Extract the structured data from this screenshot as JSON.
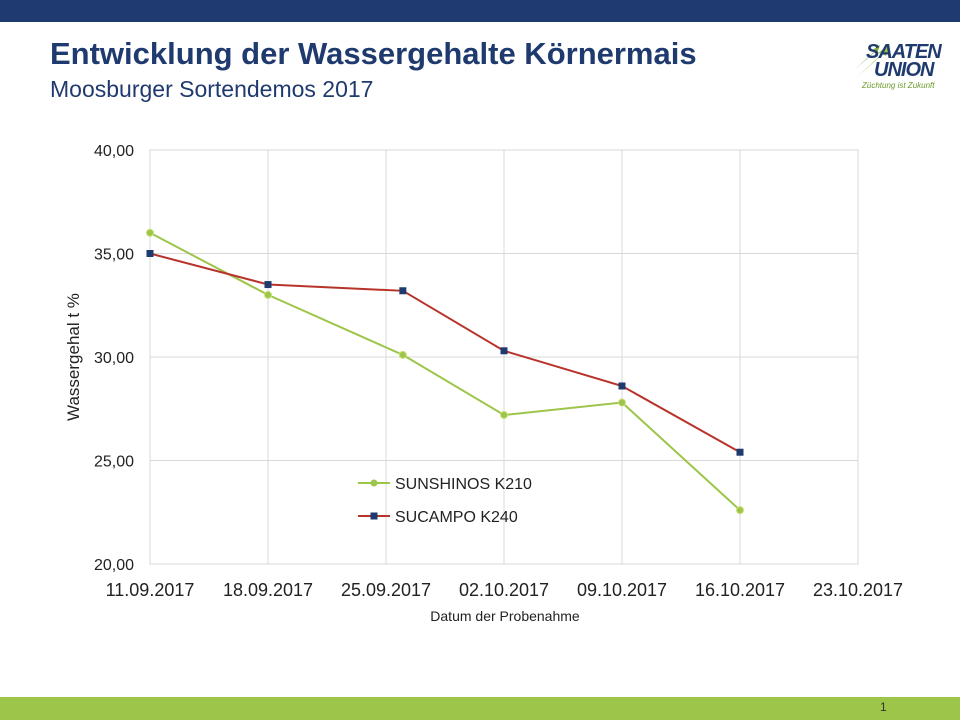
{
  "slide": {
    "title": "Entwicklung der Wassergehalte Körnermais",
    "subtitle": "Moosburger Sortendemos 2017",
    "page_number": "1"
  },
  "logo": {
    "line1": "SAATEN",
    "line2": "UNION",
    "tagline": "Züchtung ist Zukunft"
  },
  "colors": {
    "header_bar": "#1f3a6e",
    "footer_bar": "#9dc549",
    "title": "#1f3a6e",
    "grid": "#d9d9d9"
  },
  "chart_data": {
    "type": "line",
    "xlabel": "Datum der Probenahme",
    "ylabel": "Wassergehal t %",
    "x_ticks": [
      "11.09.2017",
      "18.09.2017",
      "25.09.2017",
      "02.10.2017",
      "09.10.2017",
      "16.10.2017",
      "23.10.2017"
    ],
    "x_range": [
      "2017-09-11",
      "2017-10-23"
    ],
    "y_ticks": [
      "40,00",
      "35,00",
      "30,00",
      "25,00",
      "20,00"
    ],
    "ylim": [
      20,
      40
    ],
    "grid": true,
    "legend_position": "inside-lower-center",
    "series": [
      {
        "name": "SUNSHINOS K210",
        "color": "#9dc549",
        "marker": "circle",
        "points": [
          {
            "x": "2017-09-11",
            "y": 36.0
          },
          {
            "x": "2017-09-18",
            "y": 33.0
          },
          {
            "x": "2017-09-26",
            "y": 30.1
          },
          {
            "x": "2017-10-02",
            "y": 27.2
          },
          {
            "x": "2017-10-09",
            "y": 27.8
          },
          {
            "x": "2017-10-16",
            "y": 22.6
          }
        ]
      },
      {
        "name": "SUCAMPO K240",
        "color": "#b8332a",
        "marker": "square",
        "marker_color": "#1f3a6e",
        "points": [
          {
            "x": "2017-09-11",
            "y": 35.0
          },
          {
            "x": "2017-09-18",
            "y": 33.5
          },
          {
            "x": "2017-09-26",
            "y": 33.2
          },
          {
            "x": "2017-10-02",
            "y": 30.3
          },
          {
            "x": "2017-10-09",
            "y": 28.6
          },
          {
            "x": "2017-10-16",
            "y": 25.4
          }
        ]
      }
    ]
  }
}
